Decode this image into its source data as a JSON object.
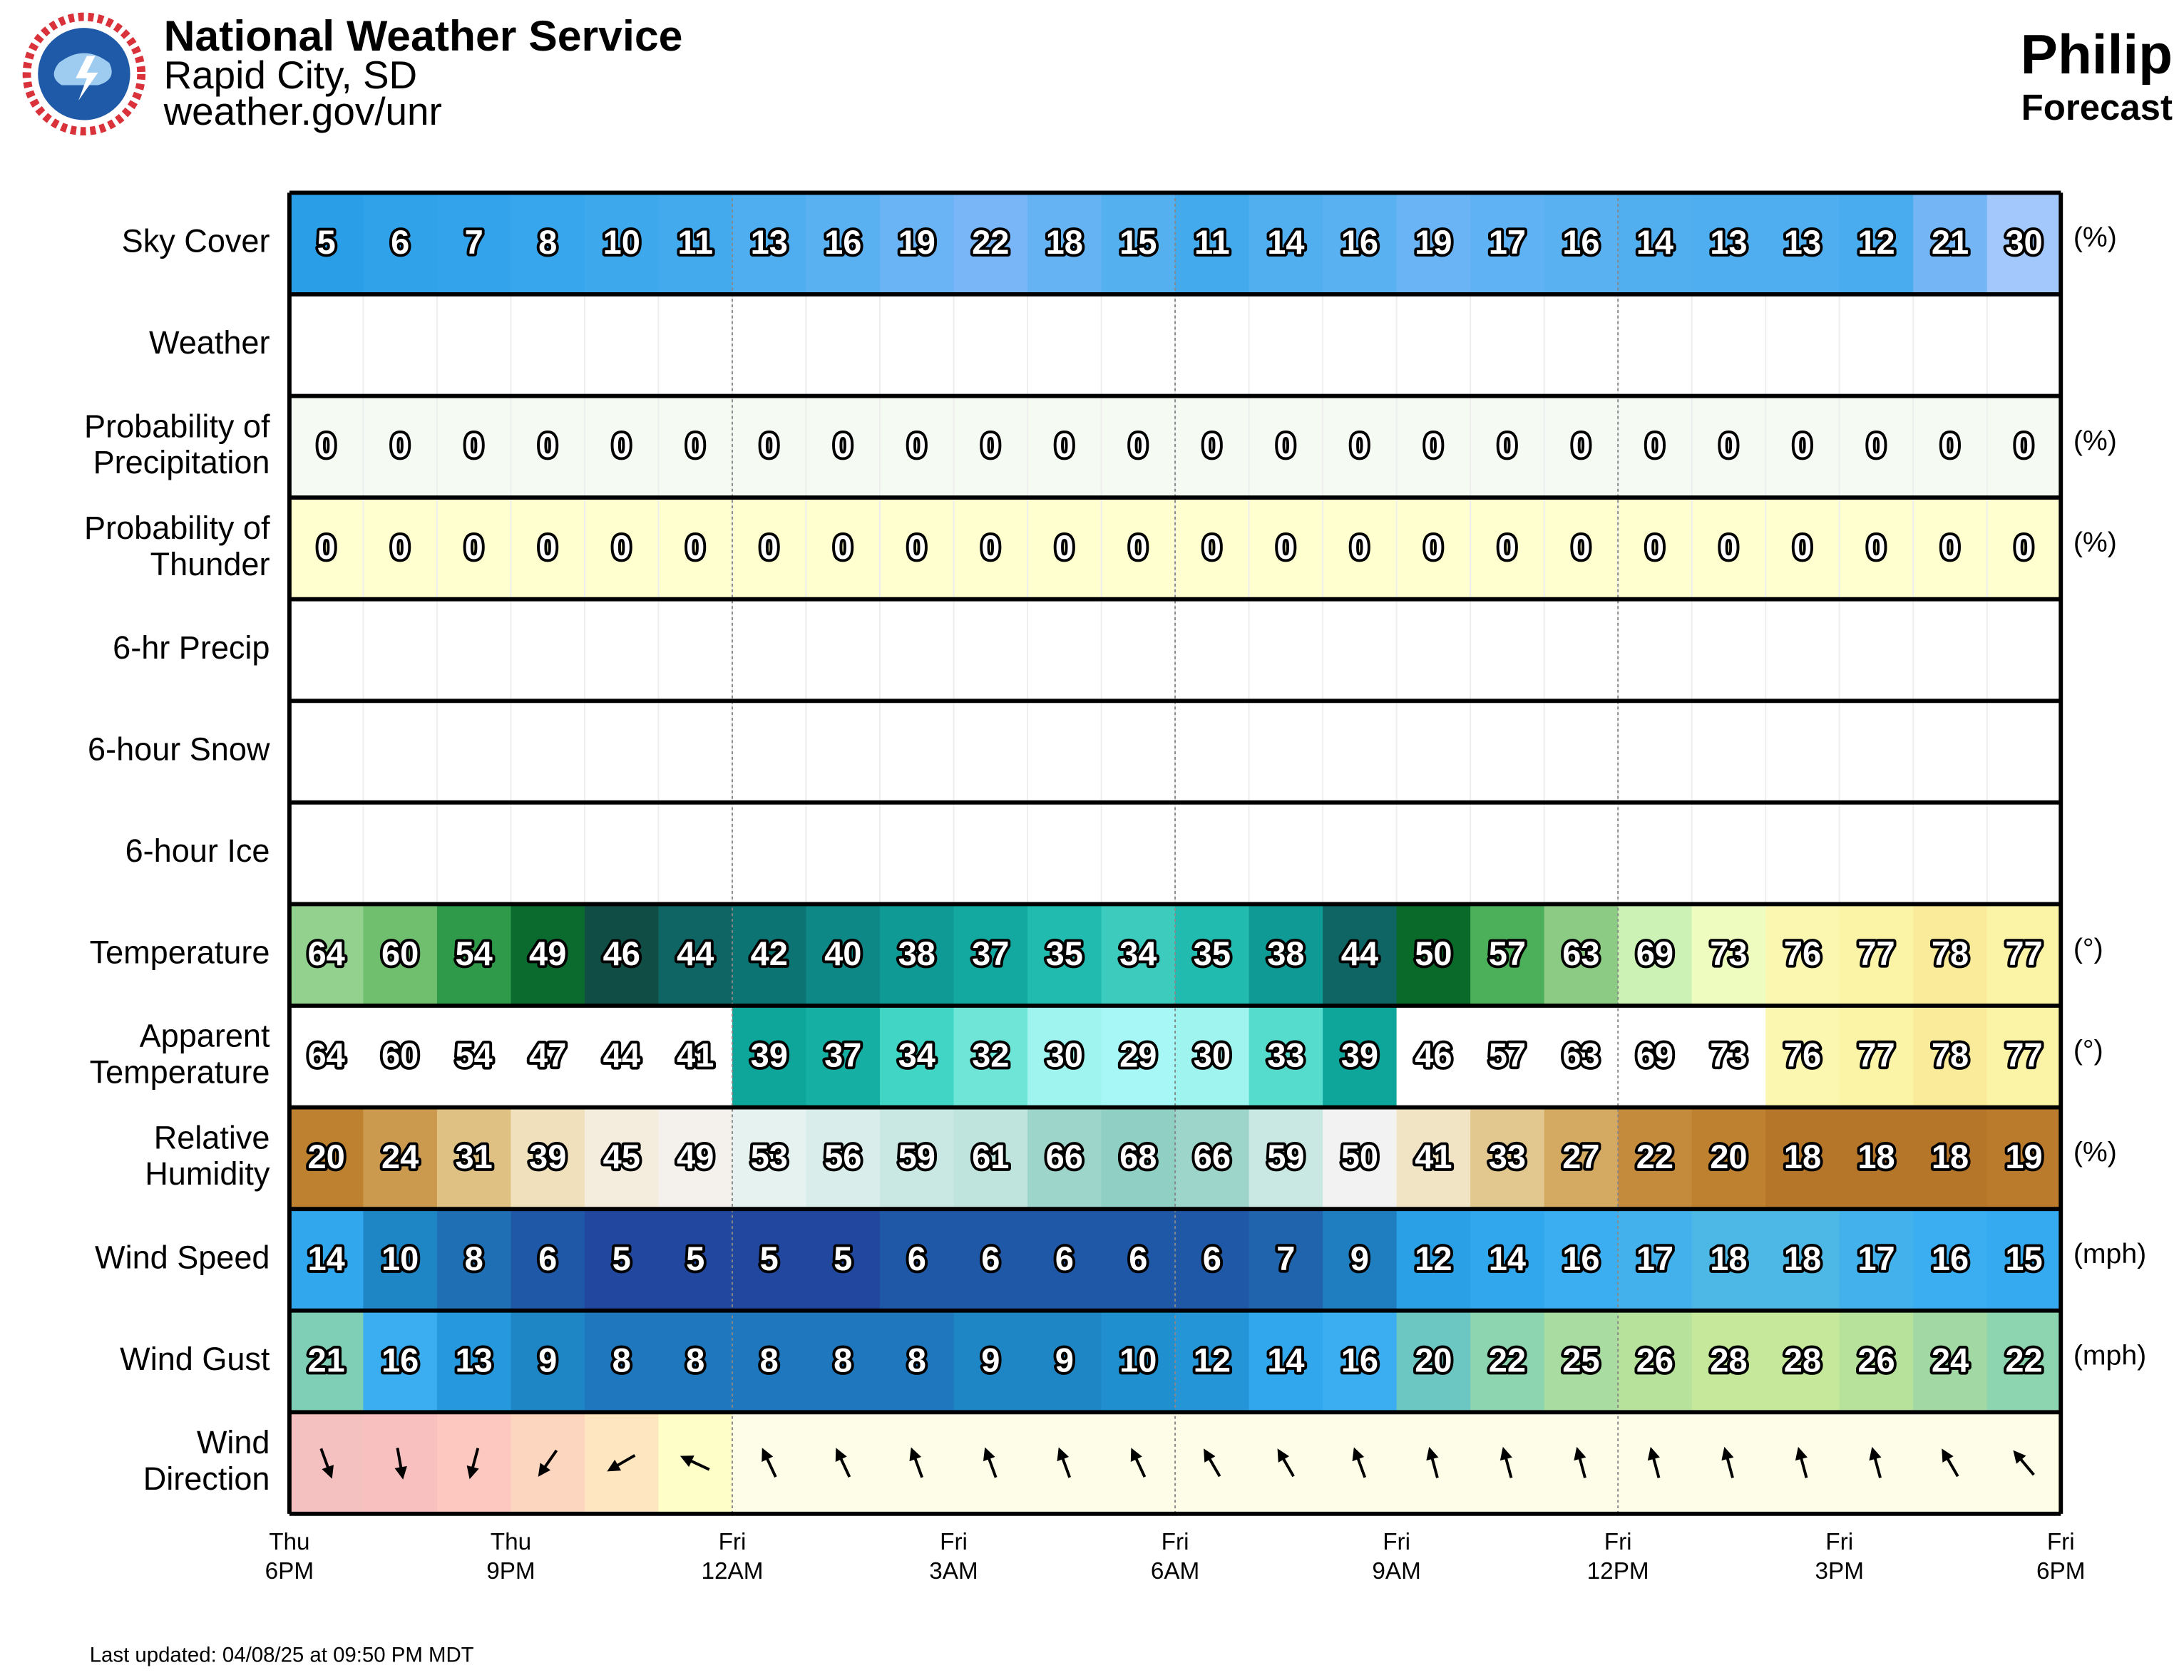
{
  "header": {
    "title": "National Weather Service",
    "office": "Rapid City, SD",
    "url": "weather.gov/unr"
  },
  "location": {
    "name": "Philip",
    "subtitle": "Forecast"
  },
  "rows": [
    {
      "label": [
        "Sky Cover"
      ],
      "unit": "(%)",
      "values": [
        5,
        6,
        7,
        8,
        10,
        11,
        13,
        16,
        19,
        22,
        18,
        15,
        11,
        14,
        16,
        19,
        17,
        16,
        14,
        13,
        13,
        12,
        21,
        30
      ],
      "colors": [
        "#2a9fe8",
        "#2fa2ea",
        "#33a4eb",
        "#38a6ec",
        "#3ea8ed",
        "#43aaee",
        "#4eaeef",
        "#5ab1f2",
        "#6ab4f5",
        "#78b6f7",
        "#66b3f4",
        "#55b0f0",
        "#43aaee",
        "#51aff0",
        "#5ab1f2",
        "#6ab4f5",
        "#5fb2f3",
        "#5ab1f2",
        "#51aff0",
        "#4eaeef",
        "#4eaeef",
        "#49acee",
        "#74b5f6",
        "#a3c8fb"
      ]
    },
    {
      "label": [
        "Weather"
      ],
      "background": "#ffffff"
    },
    {
      "label": [
        "Probability of",
        "Precipitation"
      ],
      "unit": "(%)",
      "values": [
        0,
        0,
        0,
        0,
        0,
        0,
        0,
        0,
        0,
        0,
        0,
        0,
        0,
        0,
        0,
        0,
        0,
        0,
        0,
        0,
        0,
        0,
        0,
        0
      ],
      "background": "#f5faf3"
    },
    {
      "label": [
        "Probability of",
        "Thunder"
      ],
      "unit": "(%)",
      "values": [
        0,
        0,
        0,
        0,
        0,
        0,
        0,
        0,
        0,
        0,
        0,
        0,
        0,
        0,
        0,
        0,
        0,
        0,
        0,
        0,
        0,
        0,
        0,
        0
      ],
      "background": "#ffffd0"
    },
    {
      "label": [
        "6-hr Precip"
      ],
      "background": "#ffffff"
    },
    {
      "label": [
        "6-hour Snow"
      ],
      "background": "#ffffff"
    },
    {
      "label": [
        "6-hour Ice"
      ],
      "background": "#ffffff"
    },
    {
      "label": [
        "Temperature"
      ],
      "unit": "(°)",
      "values": [
        64,
        60,
        54,
        49,
        46,
        44,
        42,
        40,
        38,
        37,
        35,
        34,
        35,
        38,
        44,
        50,
        57,
        63,
        69,
        73,
        76,
        77,
        78,
        77
      ],
      "colors": [
        "#93d18f",
        "#6fbf6f",
        "#2e9a4a",
        "#0b6b2e",
        "#104d45",
        "#0f6464",
        "#0d7474",
        "#0e8886",
        "#109a96",
        "#13a9a0",
        "#22bbb0",
        "#3ccbbd",
        "#22bbb0",
        "#109a96",
        "#0f6464",
        "#0a6a2a",
        "#4caf5a",
        "#8ccb84",
        "#cdf2b6",
        "#eefcc0",
        "#fbf6b0",
        "#fbf3a6",
        "#faeb9b",
        "#fbf3a6"
      ]
    },
    {
      "label": [
        "Apparent",
        "Temperature"
      ],
      "unit": "(°)",
      "values": [
        64,
        60,
        54,
        47,
        44,
        41,
        39,
        37,
        34,
        32,
        30,
        29,
        30,
        33,
        39,
        46,
        57,
        63,
        69,
        73,
        76,
        77,
        78,
        77
      ],
      "colors": [
        "#ffffff",
        "#ffffff",
        "#ffffff",
        "#ffffff",
        "#ffffff",
        "#ffffff",
        "#0ea59a",
        "#15b0a3",
        "#40d5c4",
        "#6ee5d6",
        "#a0f4ef",
        "#a8f7f7",
        "#a0f4ef",
        "#56dccd",
        "#0ea59a",
        "#ffffff",
        "#ffffff",
        "#ffffff",
        "#ffffff",
        "#ffffff",
        "#fbf6b0",
        "#fbf3a6",
        "#faeb9b",
        "#fbf3a6"
      ]
    },
    {
      "label": [
        "Relative",
        "Humidity"
      ],
      "unit": "(%)",
      "values": [
        20,
        24,
        31,
        39,
        45,
        49,
        53,
        56,
        59,
        61,
        66,
        68,
        66,
        59,
        50,
        41,
        33,
        27,
        22,
        20,
        18,
        18,
        18,
        19
      ],
      "colors": [
        "#be8130",
        "#cb9a4e",
        "#dfc184",
        "#f0e1bc",
        "#f4ecdd",
        "#f4f0ec",
        "#e5f2f0",
        "#d9eeeb",
        "#c9e8e3",
        "#bfe4de",
        "#9dd5cb",
        "#8fcfc4",
        "#9dd5cb",
        "#c9e8e3",
        "#f2f2f2",
        "#f1e4c5",
        "#e2c78f",
        "#d4aa62",
        "#c58b3c",
        "#be8130",
        "#b5762a",
        "#b5762a",
        "#b5762a",
        "#ba7b2d"
      ]
    },
    {
      "label": [
        "Wind Speed"
      ],
      "unit": "(mph)",
      "values": [
        14,
        10,
        8,
        6,
        5,
        5,
        5,
        5,
        6,
        6,
        6,
        6,
        6,
        7,
        9,
        12,
        14,
        16,
        17,
        18,
        18,
        17,
        16,
        15
      ],
      "colors": [
        "#31a7ee",
        "#1f86c5",
        "#1e6fb3",
        "#2058a8",
        "#22479e",
        "#22479e",
        "#22479e",
        "#22479e",
        "#2058a8",
        "#2058a8",
        "#2058a8",
        "#2058a8",
        "#2058a8",
        "#2064ae",
        "#1f7ebf",
        "#2aa0e6",
        "#31a7ee",
        "#3aaef0",
        "#43b2ec",
        "#4db7e6",
        "#4db7e6",
        "#43b2ec",
        "#3aaef0",
        "#36aaf0"
      ]
    },
    {
      "label": [
        "Wind Gust"
      ],
      "unit": "(mph)",
      "values": [
        21,
        16,
        13,
        9,
        8,
        8,
        8,
        8,
        8,
        9,
        9,
        10,
        12,
        14,
        16,
        20,
        22,
        25,
        26,
        28,
        28,
        26,
        24,
        22
      ],
      "colors": [
        "#7fcfb6",
        "#3aaef0",
        "#2598de",
        "#1f86c5",
        "#1f78bd",
        "#1f78bd",
        "#1f78bd",
        "#1f78bd",
        "#1f78bd",
        "#1f86c5",
        "#1f86c5",
        "#1f8fcf",
        "#2496d8",
        "#31a7ee",
        "#3aaef0",
        "#6cc6c2",
        "#8dd5b0",
        "#a9dca0",
        "#b6e29b",
        "#c6e89a",
        "#c6e89a",
        "#b6e29b",
        "#a2d8a4",
        "#8dd5b0"
      ]
    },
    {
      "label": [
        "Wind",
        "Direction"
      ],
      "directions": [
        340,
        350,
        15,
        35,
        60,
        115,
        155,
        155,
        160,
        160,
        160,
        155,
        150,
        150,
        160,
        165,
        165,
        165,
        165,
        165,
        165,
        165,
        150,
        140
      ],
      "colors": [
        "#f4c0c0",
        "#f9c0c0",
        "#fcc8c0",
        "#fdd6c0",
        "#fde6c0",
        "#fefec8",
        "#fefee8",
        "#fefee8",
        "#fefee8",
        "#fefee8",
        "#fefee8",
        "#fefee8",
        "#fefee8",
        "#fefee8",
        "#fefee8",
        "#fefee8",
        "#fefee8",
        "#fefee8",
        "#fefee8",
        "#fefee8",
        "#fefee8",
        "#fefee8",
        "#fefee8",
        "#fefee8"
      ]
    }
  ],
  "times": [
    {
      "day": "Thu",
      "time": "6PM"
    },
    {
      "day": "Thu",
      "time": "9PM"
    },
    {
      "day": "Fri",
      "time": "12AM"
    },
    {
      "day": "Fri",
      "time": "3AM"
    },
    {
      "day": "Fri",
      "time": "6AM"
    },
    {
      "day": "Fri",
      "time": "9AM"
    },
    {
      "day": "Fri",
      "time": "12PM"
    },
    {
      "day": "Fri",
      "time": "3PM"
    },
    {
      "day": "Fri",
      "time": "6PM"
    }
  ],
  "footer": "Last updated: 04/08/25 at 09:50 PM MDT"
}
